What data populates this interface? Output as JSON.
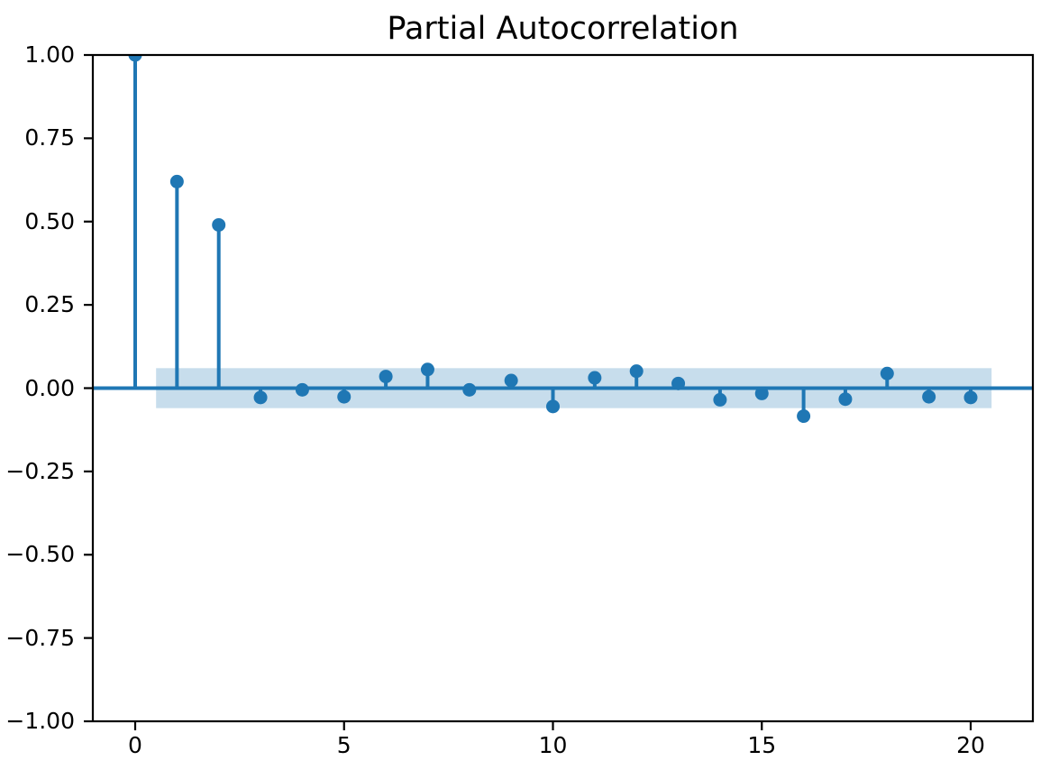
{
  "chart_data": {
    "type": "stem",
    "title": "Partial Autocorrelation",
    "xlabel": "",
    "ylabel": "",
    "x": [
      0,
      1,
      2,
      3,
      4,
      5,
      6,
      7,
      8,
      9,
      10,
      11,
      12,
      13,
      14,
      15,
      16,
      17,
      18,
      19,
      20
    ],
    "values": [
      1.0,
      0.62,
      0.49,
      -0.028,
      -0.005,
      -0.026,
      0.035,
      0.056,
      -0.005,
      0.023,
      -0.055,
      0.031,
      0.051,
      0.014,
      -0.035,
      -0.016,
      -0.084,
      -0.033,
      0.044,
      -0.026,
      -0.028
    ],
    "confidence_interval": {
      "upper": 0.06,
      "lower": -0.06,
      "x_start": 0.5,
      "x_end": 20.5
    },
    "zero_line": 0.0,
    "xlim": [
      -1.05,
      21.5
    ],
    "ylim": [
      -1.0,
      1.0
    ],
    "xticks": [
      0,
      5,
      10,
      15,
      20
    ],
    "xtick_labels": [
      "0",
      "5",
      "10",
      "15",
      "20"
    ],
    "yticks": [
      1.0,
      0.75,
      0.5,
      0.25,
      0.0,
      -0.25,
      -0.5,
      -0.75,
      -1.0
    ],
    "ytick_labels": [
      "1.00",
      "0.75",
      "0.50",
      "0.25",
      "0.00",
      "−0.25",
      "−0.50",
      "−0.75",
      "−1.00"
    ],
    "grid": false,
    "legend": "none",
    "colors": {
      "stem": "#1f77b4",
      "marker": "#1f77b4",
      "band": "#1f77b4",
      "band_opacity": 0.25,
      "axes": "#000000",
      "background": "#ffffff",
      "title_text": "#000000",
      "tick_text": "#000000"
    }
  }
}
